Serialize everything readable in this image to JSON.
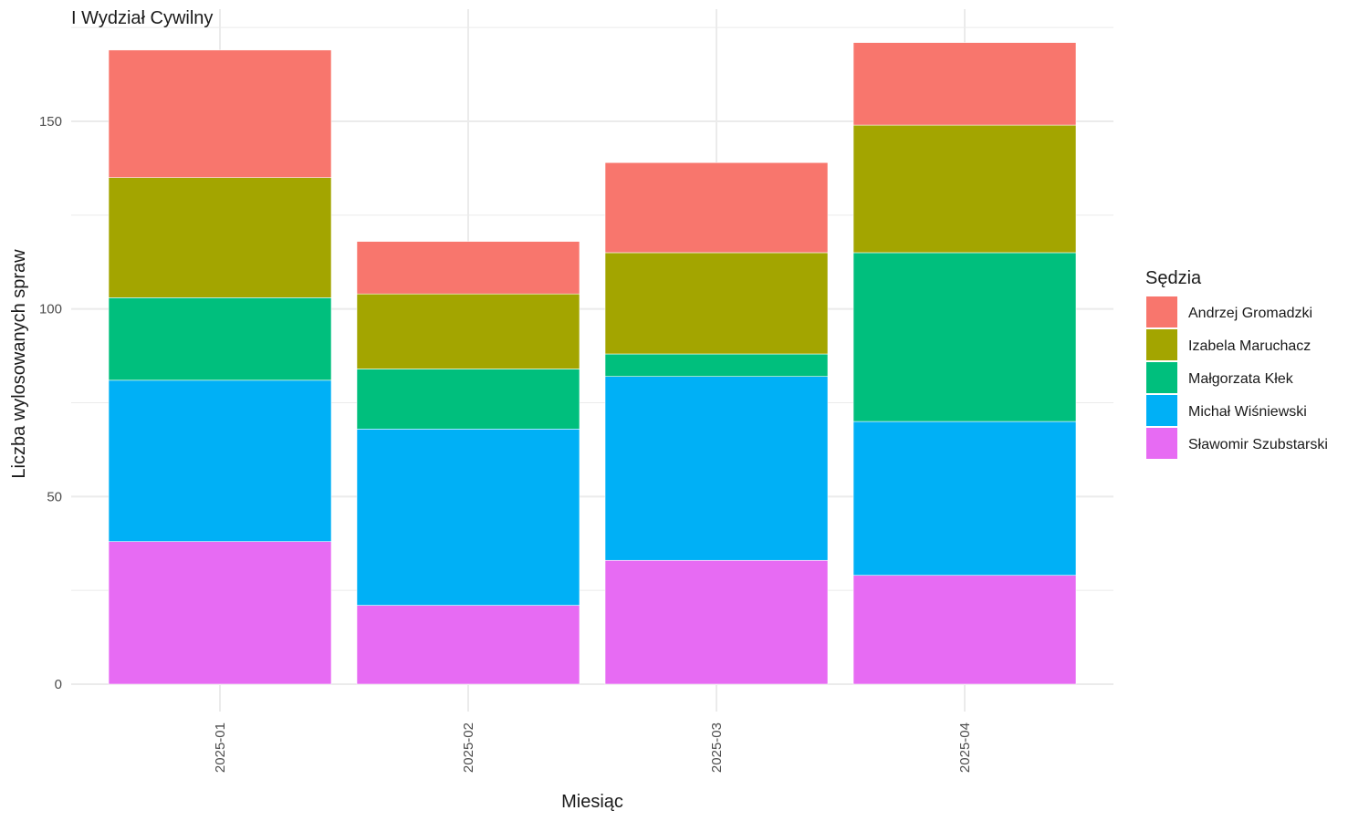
{
  "chart_data": {
    "type": "bar",
    "stacked": true,
    "title": "I Wydział Cywilny",
    "xlabel": "Miesiąc",
    "ylabel": "Liczba wylosowanych spraw",
    "categories": [
      "2025-01",
      "2025-02",
      "2025-03",
      "2025-04"
    ],
    "ylim": [
      0,
      175
    ],
    "yticks": [
      0,
      50,
      100,
      150
    ],
    "grid": true,
    "legend": {
      "title": "Sędzia",
      "position": "right"
    },
    "series": [
      {
        "name": "Sławomir Szubstarski",
        "color": "#E76BF3",
        "values": [
          38,
          21,
          33,
          29
        ]
      },
      {
        "name": "Michał Wiśniewski",
        "color": "#00B0F6",
        "values": [
          43,
          47,
          49,
          41
        ]
      },
      {
        "name": "Małgorzata Kłek",
        "color": "#00BF7D",
        "values": [
          22,
          16,
          6,
          45
        ]
      },
      {
        "name": "Izabela Maruchacz",
        "color": "#A3A500",
        "values": [
          32,
          20,
          27,
          34
        ]
      },
      {
        "name": "Andrzej Gromadzki",
        "color": "#F8766D",
        "values": [
          34,
          14,
          24,
          22
        ]
      }
    ],
    "legend_order": [
      "Andrzej Gromadzki",
      "Izabela Maruchacz",
      "Małgorzata Kłek",
      "Michał Wiśniewski",
      "Sławomir Szubstarski"
    ]
  }
}
